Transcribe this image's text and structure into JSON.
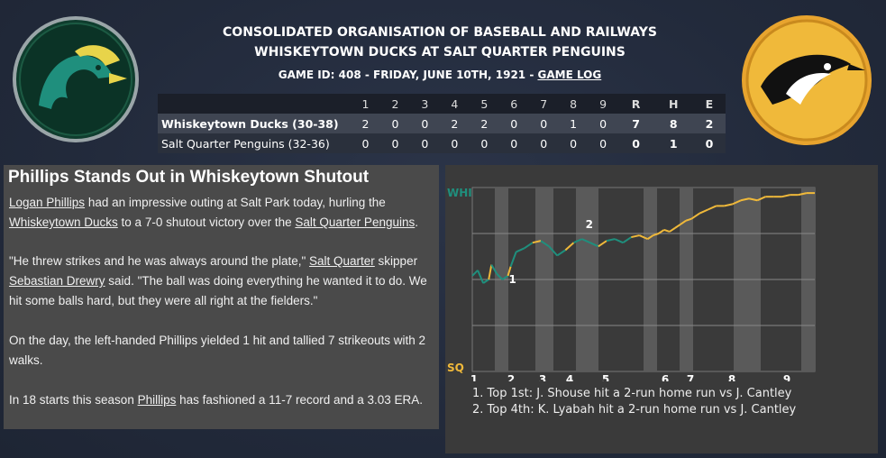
{
  "header": {
    "league": "CONSOLIDATED ORGANISATION OF BASEBALL AND RAILWAYS",
    "matchup": "WHISKEYTOWN DUCKS AT SALT QUARTER PENGUINS",
    "game_info": "GAME ID: 408 - FRIDAY, JUNE 10TH, 1921 - ",
    "game_log_link": "GAME LOG"
  },
  "colors": {
    "away": "#1f8f7d",
    "home": "#f0b93a"
  },
  "box": {
    "innings": [
      "1",
      "2",
      "3",
      "4",
      "5",
      "6",
      "7",
      "8",
      "9"
    ],
    "totals_headers": [
      "R",
      "H",
      "E"
    ],
    "rows": [
      {
        "team": "Whiskeytown Ducks (30-38)",
        "innings": [
          "2",
          "0",
          "0",
          "2",
          "2",
          "0",
          "0",
          "1",
          "0"
        ],
        "totals": [
          "7",
          "8",
          "2"
        ]
      },
      {
        "team": "Salt Quarter Penguins (32-36)",
        "innings": [
          "0",
          "0",
          "0",
          "0",
          "0",
          "0",
          "0",
          "0",
          "0"
        ],
        "totals": [
          "0",
          "1",
          "0"
        ]
      }
    ]
  },
  "story": {
    "headline": "Phillips Stands Out in Whiskeytown Shutout",
    "p1": {
      "a": "Logan Phillips",
      "b": " had an impressive outing at Salt Park today, hurling the ",
      "c": "Whiskeytown Ducks",
      "d": " to a 7-0 shutout victory over the ",
      "e": "Salt Quarter Penguins",
      "f": "."
    },
    "p2": {
      "a": "\"He threw strikes and he was always around the plate,\" ",
      "b": "Salt Quarter",
      "c": " skipper ",
      "d": "Sebastian Drewry",
      "e": " said. \"The ball was doing everything he wanted it to do. We hit some balls hard, but they were all right at the fielders.\""
    },
    "p3": "On the day, the left-handed Phillips yielded 1 hit and tallied 7 strikeouts with 2 walks.",
    "p4": {
      "a": "In 18 starts this season ",
      "b": "Phillips",
      "c": " has fashioned a 11-7 record and a 3.03 ERA."
    }
  },
  "chart_data": {
    "type": "line",
    "title": "",
    "top_label": "WHI",
    "bottom_label": "SQ",
    "x_ticks": [
      "1",
      "2",
      "3",
      "4",
      "5",
      "6",
      "7",
      "8",
      "9"
    ],
    "ylim": [
      0,
      1
    ],
    "note": "y is win probability for WHI",
    "series": [
      {
        "values": [
          [
            0.0,
            0.52
          ],
          [
            0.02,
            0.55
          ],
          [
            0.04,
            0.48
          ],
          [
            0.06,
            0.5
          ],
          [
            0.07,
            0.58
          ],
          [
            0.09,
            0.53
          ],
          [
            0.11,
            0.5
          ],
          [
            0.13,
            0.52
          ],
          [
            0.14,
            0.57
          ],
          [
            0.16,
            0.65
          ],
          [
            0.19,
            0.67
          ],
          [
            0.22,
            0.7
          ],
          [
            0.25,
            0.71
          ],
          [
            0.28,
            0.68
          ],
          [
            0.31,
            0.63
          ],
          [
            0.34,
            0.66
          ],
          [
            0.37,
            0.7
          ],
          [
            0.4,
            0.72
          ],
          [
            0.43,
            0.7
          ],
          [
            0.46,
            0.68
          ],
          [
            0.49,
            0.71
          ],
          [
            0.52,
            0.72
          ],
          [
            0.55,
            0.7
          ],
          [
            0.58,
            0.73
          ],
          [
            0.61,
            0.74
          ],
          [
            0.64,
            0.72
          ],
          [
            0.66,
            0.74
          ],
          [
            0.68,
            0.75
          ],
          [
            0.7,
            0.77
          ],
          [
            0.72,
            0.76
          ],
          [
            0.74,
            0.78
          ],
          [
            0.76,
            0.8
          ],
          [
            0.78,
            0.82
          ],
          [
            0.8,
            0.83
          ],
          [
            0.83,
            0.86
          ],
          [
            0.86,
            0.88
          ],
          [
            0.89,
            0.9
          ],
          [
            0.92,
            0.9
          ],
          [
            0.95,
            0.91
          ],
          [
            0.98,
            0.93
          ],
          [
            1.01,
            0.94
          ],
          [
            1.04,
            0.93
          ],
          [
            1.07,
            0.95
          ],
          [
            1.1,
            0.95
          ],
          [
            1.13,
            0.95
          ],
          [
            1.16,
            0.96
          ],
          [
            1.19,
            0.96
          ],
          [
            1.22,
            0.97
          ],
          [
            1.25,
            0.97
          ]
        ]
      }
    ],
    "markers": [
      {
        "label": "1",
        "x": 0.12,
        "y": 0.5
      },
      {
        "label": "2",
        "x": 0.4,
        "y": 0.8
      }
    ],
    "events": [
      "1. Top 1st: J. Shouse hit a 2-run home run vs J. Cantley",
      "2. Top 4th: K. Lyabah hit a 2-run home run vs J. Cantley"
    ]
  }
}
